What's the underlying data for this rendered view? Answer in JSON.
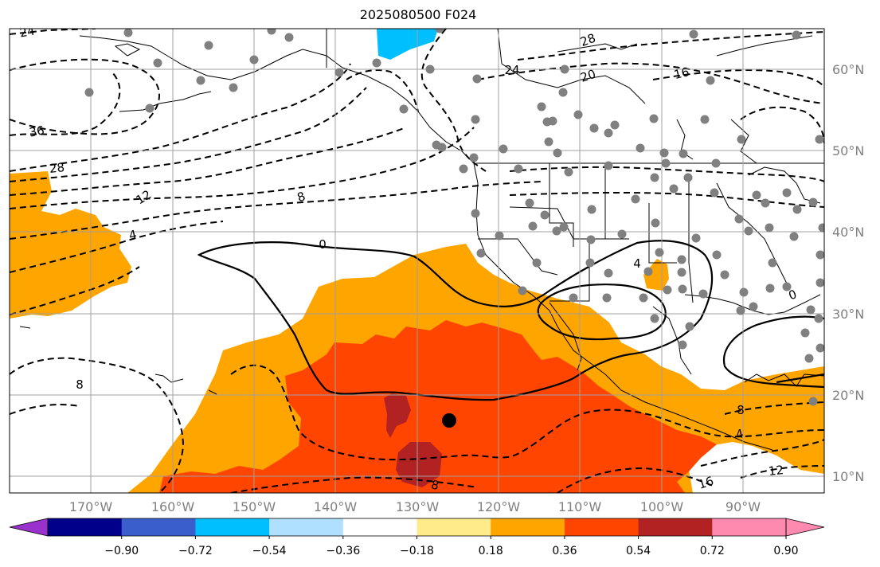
{
  "title": "2025080500 F024",
  "map": {
    "projection": "plate carree",
    "lon_range": [
      -180,
      -80
    ],
    "lat_range": [
      8,
      65
    ],
    "grid": true,
    "lat_labels": [
      "60°N",
      "50°N",
      "40°N",
      "30°N",
      "20°N",
      "10°N"
    ],
    "lon_labels": [
      "170°W",
      "160°W",
      "150°W",
      "140°W",
      "130°W",
      "120°W",
      "110°W",
      "100°W",
      "90°W"
    ],
    "colors": {
      "grid": "#a0a0a0",
      "contour": "#000000",
      "coast": "#000000",
      "station": "#808080",
      "marker": "#000000"
    },
    "contour_labels": [
      "24",
      "28",
      "24",
      "20",
      "16",
      "36",
      "28",
      "12",
      "8",
      "4",
      "0",
      "4",
      "0",
      "8",
      "8",
      "4",
      "8",
      "16",
      "12"
    ],
    "shaded_field_colors": {
      "0.36-0.54": "#ffa500",
      "0.54-0.72": "#ff4500",
      "0.72-0.90": "#b22222",
      "-0.54--0.36": "#00bfff"
    }
  },
  "colorbar": {
    "ticks": [
      "−0.90",
      "−0.72",
      "−0.54",
      "−0.36",
      "−0.18",
      "0.18",
      "0.36",
      "0.54",
      "0.72",
      "0.90"
    ],
    "colors": [
      "#9932cc",
      "#00008b",
      "#3a5fcd",
      "#00bfff",
      "#b0e0ff",
      "#ffffff",
      "#ffeb8a",
      "#ffa500",
      "#ff4500",
      "#b22222",
      "#ff8ab0",
      "#ff8ab0"
    ],
    "extend": "both"
  }
}
